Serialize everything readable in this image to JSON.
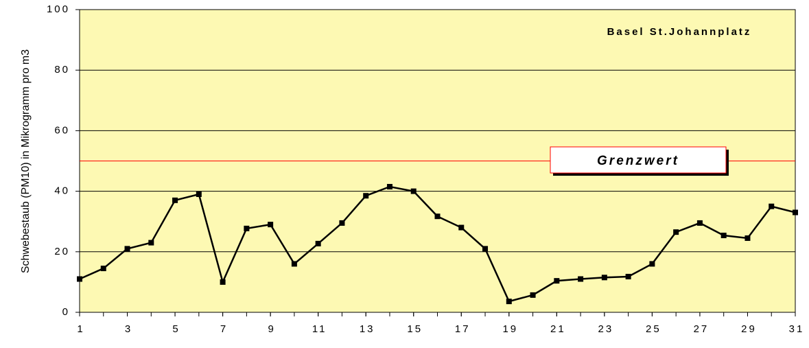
{
  "chart_data": {
    "type": "line",
    "title": "Basel St.Johannplatz",
    "y_label": "Schwebestaub (PM10) in Mikrogramm pro m3",
    "x": [
      1,
      2,
      3,
      4,
      5,
      6,
      7,
      8,
      9,
      10,
      11,
      12,
      13,
      14,
      15,
      16,
      17,
      18,
      19,
      20,
      21,
      22,
      23,
      24,
      25,
      26,
      27,
      28,
      29,
      30,
      31
    ],
    "series": [
      {
        "name": "Basel St.Johannplatz",
        "color": "#000000",
        "values": [
          11,
          14.5,
          21,
          23,
          37,
          39,
          10,
          27.7,
          29,
          16,
          22.7,
          29.5,
          38.5,
          41.5,
          40,
          31.7,
          28,
          21,
          3.6,
          5.7,
          10.4,
          11,
          11.5,
          11.8,
          16,
          26.5,
          29.5,
          25.4,
          24.5,
          35,
          33
        ]
      }
    ],
    "xlim": [
      1,
      31
    ],
    "xticks": [
      1,
      3,
      5,
      7,
      9,
      11,
      13,
      15,
      17,
      19,
      21,
      23,
      25,
      27,
      29,
      31
    ],
    "ylim": [
      0,
      100
    ],
    "yticks": [
      0,
      20,
      40,
      60,
      80,
      100
    ],
    "grid": true,
    "background": "#fdf9b3",
    "threshold": {
      "value": 50,
      "label": "Grenzwert",
      "color": "#ff0000"
    }
  }
}
